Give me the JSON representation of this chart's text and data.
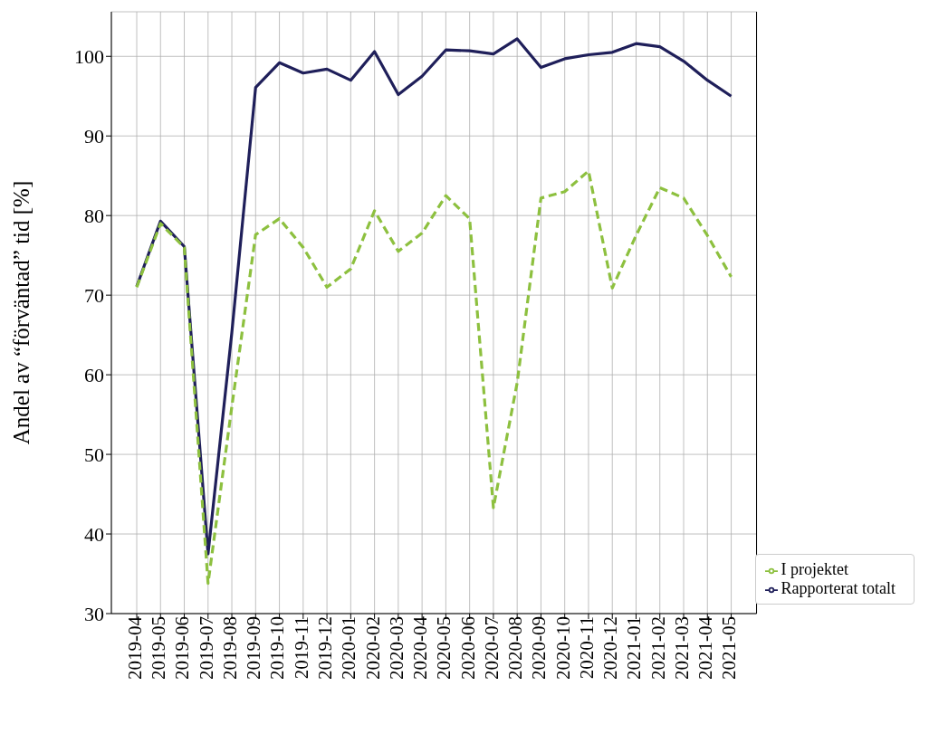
{
  "chart_data": {
    "type": "line",
    "ylabel": "Andel av “förväntad” tid [%]",
    "categories": [
      "2019-04",
      "2019-05",
      "2019-06",
      "2019-07",
      "2019-08",
      "2019-09",
      "2019-10",
      "2019-11",
      "2019-12",
      "2020-01",
      "2020-02",
      "2020-03",
      "2020-04",
      "2020-05",
      "2020-06",
      "2020-07",
      "2020-08",
      "2020-09",
      "2020-10",
      "2020-11",
      "2020-12",
      "2021-01",
      "2021-02",
      "2021-03",
      "2021-04",
      "2021-05"
    ],
    "series": [
      {
        "name": "Rapporterat totalt",
        "color": "#1f1f5a",
        "line_style": "solid",
        "values": [
          71.1,
          79.3,
          76.1,
          37.5,
          65.3,
          96.1,
          99.2,
          97.9,
          98.4,
          97.0,
          100.6,
          95.2,
          97.5,
          100.8,
          100.7,
          100.3,
          102.2,
          98.6,
          99.7,
          100.2,
          100.5,
          101.6,
          101.2,
          99.4,
          97.0,
          95.0
        ]
      },
      {
        "name": "I projektet",
        "color": "#8dc03f",
        "line_style": "dashed",
        "values": [
          71.0,
          79.0,
          76.0,
          33.8,
          56.0,
          77.6,
          79.6,
          76.0,
          71.0,
          73.3,
          80.6,
          75.5,
          77.8,
          82.5,
          79.6,
          43.3,
          59.0,
          82.2,
          83.0,
          85.6,
          70.9,
          77.5,
          83.5,
          82.2,
          77.5,
          72.3
        ]
      }
    ],
    "ylim": [
      30,
      105.6
    ],
    "yticks": [
      30,
      40,
      50,
      60,
      70,
      80,
      90,
      100
    ],
    "grid": true,
    "legend": "bottom right",
    "marker": "none"
  }
}
